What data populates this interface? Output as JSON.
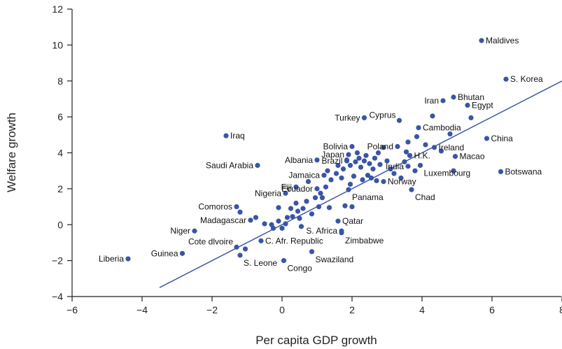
{
  "chart_data": {
    "type": "scatter",
    "title": "",
    "xlabel": "Per capita GDP growth",
    "ylabel": "Welfare growth",
    "xlim": [
      -6,
      8
    ],
    "ylim": [
      -4,
      12
    ],
    "xticks": [
      -6,
      -4,
      -2,
      0,
      2,
      4,
      6,
      8
    ],
    "yticks": [
      -4,
      -2,
      0,
      2,
      4,
      6,
      8,
      10,
      12
    ],
    "xtick_labels": [
      "−6",
      "−4",
      "−2",
      "0",
      "2",
      "4",
      "6",
      "8"
    ],
    "ytick_labels": [
      "−4",
      "−2",
      "0",
      "2",
      "4",
      "6",
      "8",
      "10",
      "12"
    ],
    "grid": false,
    "colors": {
      "points": "#3a55a4",
      "line": "#3a55a4",
      "axis": "#222222"
    },
    "fit_line": {
      "x": [
        -3.5,
        8
      ],
      "y": [
        -3.5,
        8
      ]
    },
    "labeled_points": [
      {
        "name": "Maldives",
        "x": 5.7,
        "y": 10.25,
        "anchor": "right"
      },
      {
        "name": "S. Korea",
        "x": 6.4,
        "y": 8.1,
        "anchor": "right"
      },
      {
        "name": "Iran",
        "x": 4.6,
        "y": 6.9,
        "anchor": "left"
      },
      {
        "name": "Bhutan",
        "x": 4.9,
        "y": 7.1,
        "anchor": "right"
      },
      {
        "name": "Egypt",
        "x": 5.3,
        "y": 6.65,
        "anchor": "right"
      },
      {
        "name": "Turkey",
        "x": 2.35,
        "y": 5.95,
        "anchor": "left"
      },
      {
        "name": "Cyprus",
        "x": 3.35,
        "y": 5.8,
        "anchor": "leftup"
      },
      {
        "name": "Cambodia",
        "x": 3.9,
        "y": 5.4,
        "anchor": "right"
      },
      {
        "name": "China",
        "x": 5.85,
        "y": 4.8,
        "anchor": "right"
      },
      {
        "name": "Iraq",
        "x": -1.6,
        "y": 4.95,
        "anchor": "right"
      },
      {
        "name": "Bolivia",
        "x": 2.0,
        "y": 4.35,
        "anchor": "left"
      },
      {
        "name": "Poland",
        "x": 3.3,
        "y": 4.35,
        "anchor": "left"
      },
      {
        "name": "Japan",
        "x": 1.9,
        "y": 3.9,
        "anchor": "left"
      },
      {
        "name": "Brazil",
        "x": 1.85,
        "y": 3.55,
        "anchor": "left"
      },
      {
        "name": "Albania",
        "x": 1.0,
        "y": 3.6,
        "anchor": "left"
      },
      {
        "name": "Ireland",
        "x": 4.35,
        "y": 4.3,
        "anchor": "right"
      },
      {
        "name": "Macao",
        "x": 4.95,
        "y": 3.8,
        "anchor": "right"
      },
      {
        "name": "H.K.",
        "x": 3.65,
        "y": 3.85,
        "anchor": "right"
      },
      {
        "name": "Saudi Arabia",
        "x": -0.7,
        "y": 3.3,
        "anchor": "left"
      },
      {
        "name": "India",
        "x": 3.6,
        "y": 3.25,
        "anchor": "left"
      },
      {
        "name": "Luxembourg",
        "x": 3.95,
        "y": 3.3,
        "anchor": "rightdown"
      },
      {
        "name": "Botswana",
        "x": 6.25,
        "y": 2.95,
        "anchor": "right"
      },
      {
        "name": "Jamaica",
        "x": 1.2,
        "y": 2.75,
        "anchor": "left"
      },
      {
        "name": "Fiji",
        "x": 0.4,
        "y": 2.1,
        "anchor": "left"
      },
      {
        "name": "Ecuador",
        "x": 1.0,
        "y": 2.0,
        "anchor": "left"
      },
      {
        "name": "Norway",
        "x": 2.9,
        "y": 2.4,
        "anchor": "right"
      },
      {
        "name": "Nigeria",
        "x": 0.1,
        "y": 1.75,
        "anchor": "left"
      },
      {
        "name": "Panama",
        "x": 1.9,
        "y": 1.95,
        "anchor": "rightdown"
      },
      {
        "name": "Chad",
        "x": 3.7,
        "y": 1.95,
        "anchor": "rightdown"
      },
      {
        "name": "Comoros",
        "x": -1.3,
        "y": 1.0,
        "anchor": "left"
      },
      {
        "name": "Madagascar",
        "x": -0.9,
        "y": 0.25,
        "anchor": "left"
      },
      {
        "name": "Qatar",
        "x": 1.6,
        "y": 0.2,
        "anchor": "right"
      },
      {
        "name": "Niger",
        "x": -2.5,
        "y": -0.35,
        "anchor": "left"
      },
      {
        "name": "S. Africa",
        "x": 1.7,
        "y": -0.35,
        "anchor": "left"
      },
      {
        "name": "Zimbabwe",
        "x": 1.7,
        "y": -0.45,
        "anchor": "rightdown"
      },
      {
        "name": "Cote dlvoire",
        "x": -1.3,
        "y": -1.25,
        "anchor": "leftup"
      },
      {
        "name": "C. Afr. Republic",
        "x": -0.6,
        "y": -0.9,
        "anchor": "right"
      },
      {
        "name": "Guinea",
        "x": -2.85,
        "y": -1.6,
        "anchor": "left"
      },
      {
        "name": "Liberia",
        "x": -4.4,
        "y": -1.9,
        "anchor": "left"
      },
      {
        "name": "S. Leone",
        "x": -1.2,
        "y": -1.7,
        "anchor": "rightdown"
      },
      {
        "name": "Swaziland",
        "x": 0.85,
        "y": -1.5,
        "anchor": "rightdown"
      },
      {
        "name": "Congo",
        "x": 0.05,
        "y": -2.0,
        "anchor": "rightdown"
      }
    ],
    "unlabeled_points": [
      [
        -1.2,
        0.7
      ],
      [
        -1.05,
        -1.35
      ],
      [
        -0.3,
        0.0
      ],
      [
        -0.1,
        0.2
      ],
      [
        0.0,
        -0.2
      ],
      [
        0.1,
        0.05
      ],
      [
        0.15,
        0.4
      ],
      [
        0.25,
        0.9
      ],
      [
        0.3,
        0.45
      ],
      [
        0.4,
        1.2
      ],
      [
        0.45,
        0.75
      ],
      [
        0.5,
        0.35
      ],
      [
        0.6,
        0.9
      ],
      [
        0.7,
        1.3
      ],
      [
        0.75,
        2.4
      ],
      [
        0.85,
        0.6
      ],
      [
        0.95,
        1.5
      ],
      [
        1.05,
        1.0
      ],
      [
        1.1,
        1.75
      ],
      [
        1.15,
        1.5
      ],
      [
        1.25,
        2.1
      ],
      [
        1.3,
        3.0
      ],
      [
        1.35,
        0.95
      ],
      [
        1.4,
        2.5
      ],
      [
        1.55,
        2.85
      ],
      [
        1.6,
        3.3
      ],
      [
        1.7,
        2.6
      ],
      [
        1.75,
        3.1
      ],
      [
        1.8,
        1.05
      ],
      [
        1.85,
        3.6
      ],
      [
        1.95,
        2.25
      ],
      [
        1.95,
        3.3
      ],
      [
        2.0,
        1.0
      ],
      [
        2.05,
        2.7
      ],
      [
        2.1,
        3.5
      ],
      [
        2.15,
        4.0
      ],
      [
        2.2,
        3.7
      ],
      [
        2.25,
        3.2
      ],
      [
        2.3,
        2.5
      ],
      [
        2.35,
        3.55
      ],
      [
        2.4,
        3.85
      ],
      [
        2.45,
        2.75
      ],
      [
        2.5,
        3.4
      ],
      [
        2.55,
        2.6
      ],
      [
        2.6,
        3.1
      ],
      [
        2.65,
        3.7
      ],
      [
        2.7,
        2.45
      ],
      [
        2.75,
        4.0
      ],
      [
        2.8,
        3.35
      ],
      [
        2.9,
        4.3
      ],
      [
        3.0,
        3.55
      ],
      [
        3.1,
        3.1
      ],
      [
        3.2,
        2.85
      ],
      [
        3.4,
        2.6
      ],
      [
        3.5,
        3.5
      ],
      [
        3.55,
        4.05
      ],
      [
        3.6,
        4.6
      ],
      [
        3.8,
        3.0
      ],
      [
        3.85,
        4.9
      ],
      [
        4.1,
        4.45
      ],
      [
        4.3,
        6.05
      ],
      [
        4.55,
        4.1
      ],
      [
        4.8,
        5.05
      ],
      [
        4.9,
        3.0
      ],
      [
        5.4,
        5.95
      ],
      [
        -0.75,
        0.4
      ],
      [
        -0.5,
        0.05
      ],
      [
        -0.25,
        -0.2
      ],
      [
        0.55,
        -0.1
      ],
      [
        -0.1,
        0.95
      ]
    ]
  }
}
